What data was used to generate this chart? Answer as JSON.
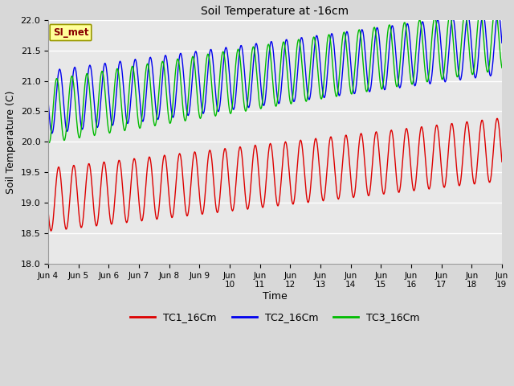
{
  "title": "Soil Temperature at -16cm",
  "xlabel": "Time",
  "ylabel": "Soil Temperature (C)",
  "ylim": [
    18.0,
    22.0
  ],
  "yticks": [
    18.0,
    18.5,
    19.0,
    19.5,
    20.0,
    20.5,
    21.0,
    21.5,
    22.0
  ],
  "fig_bg_color": "#d8d8d8",
  "plot_bg_color": "#e8e8e8",
  "legend_labels": [
    "TC1_16Cm",
    "TC2_16Cm",
    "TC3_16Cm"
  ],
  "line_colors": [
    "#dd0000",
    "#0000ee",
    "#00bb00"
  ],
  "annotation_text": "SI_met",
  "annotation_bg": "#ffff99",
  "annotation_border": "#999900",
  "n_points": 720,
  "x_start_day": 4,
  "x_end_day": 19,
  "tc1_base": 19.05,
  "tc1_trend": 0.055,
  "tc1_amp": 0.52,
  "tc1_period": 0.5,
  "tc1_phase": 0.4,
  "tc2_base": 20.65,
  "tc2_trend": 0.065,
  "tc2_amp": 0.52,
  "tc2_period": 0.5,
  "tc2_phase": 0.0,
  "tc3_base": 20.5,
  "tc3_trend": 0.08,
  "tc3_amp": 0.52,
  "tc3_period": 0.5,
  "tc3_phase": 1.2,
  "xtick_days": [
    4,
    5,
    6,
    7,
    8,
    9,
    10,
    11,
    12,
    13,
    14,
    15,
    16,
    17,
    18,
    19
  ]
}
